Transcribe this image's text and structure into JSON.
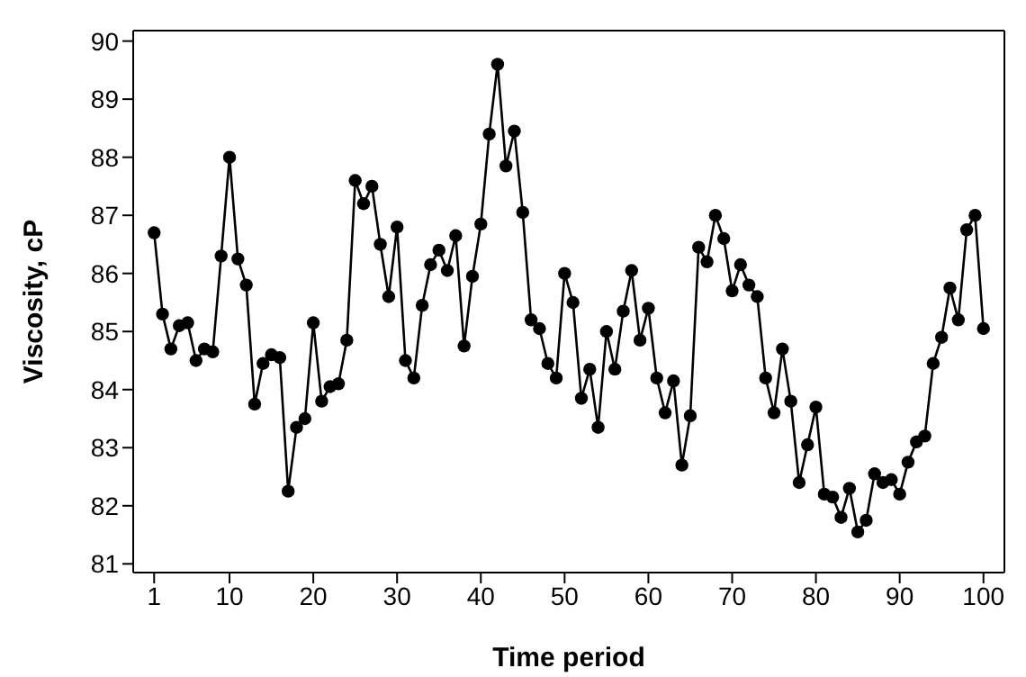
{
  "chart_data": {
    "type": "line",
    "xlabel": "Time period",
    "ylabel": "Viscosity, cP",
    "x": [
      1,
      2,
      3,
      4,
      5,
      6,
      7,
      8,
      9,
      10,
      11,
      12,
      13,
      14,
      15,
      16,
      17,
      18,
      19,
      20,
      21,
      22,
      23,
      24,
      25,
      26,
      27,
      28,
      29,
      30,
      31,
      32,
      33,
      34,
      35,
      36,
      37,
      38,
      39,
      40,
      41,
      42,
      43,
      44,
      45,
      46,
      47,
      48,
      49,
      50,
      51,
      52,
      53,
      54,
      55,
      56,
      57,
      58,
      59,
      60,
      61,
      62,
      63,
      64,
      65,
      66,
      67,
      68,
      69,
      70,
      71,
      72,
      73,
      74,
      75,
      76,
      77,
      78,
      79,
      80,
      81,
      82,
      83,
      84,
      85,
      86,
      87,
      88,
      89,
      90,
      91,
      92,
      93,
      94,
      95,
      96,
      97,
      98,
      99,
      100
    ],
    "series": [
      {
        "color": "#000000",
        "values": [
          86.7,
          85.3,
          84.7,
          85.1,
          85.15,
          84.5,
          84.7,
          84.65,
          86.3,
          88.0,
          86.25,
          85.8,
          83.75,
          84.45,
          84.6,
          84.55,
          82.25,
          83.35,
          83.5,
          85.15,
          83.8,
          84.05,
          84.1,
          84.85,
          87.6,
          87.2,
          87.5,
          86.5,
          85.6,
          86.8,
          84.5,
          84.2,
          85.45,
          86.15,
          86.4,
          86.05,
          86.65,
          84.75,
          85.95,
          86.85,
          88.4,
          89.6,
          87.85,
          88.45,
          87.05,
          85.2,
          85.05,
          84.45,
          84.2,
          86.0,
          85.5,
          83.85,
          84.35,
          83.35,
          85.0,
          84.35,
          85.35,
          86.05,
          84.85,
          85.4,
          84.2,
          83.6,
          84.15,
          82.7,
          83.55,
          86.45,
          86.2,
          87.0,
          86.6,
          85.7,
          86.15,
          85.8,
          85.6,
          84.2,
          83.6,
          84.7,
          83.8,
          82.4,
          83.05,
          83.7,
          82.2,
          82.15,
          81.8,
          82.3,
          81.55,
          81.75,
          82.55,
          82.4,
          82.45,
          82.2,
          82.75,
          83.1,
          83.2,
          84.45,
          84.9,
          85.75,
          85.2,
          86.75,
          87.0,
          85.05
        ]
      }
    ],
    "xlim": [
      -1.5,
      102.5
    ],
    "xticks": [
      1,
      10,
      20,
      30,
      40,
      50,
      60,
      70,
      80,
      90,
      100
    ],
    "ylim": [
      80.85,
      90.18
    ],
    "yticks": [
      81,
      82,
      83,
      84,
      85,
      86,
      87,
      88,
      89,
      90
    ],
    "marker": "circle",
    "line_style": "solid",
    "grid": false,
    "legend": false
  }
}
